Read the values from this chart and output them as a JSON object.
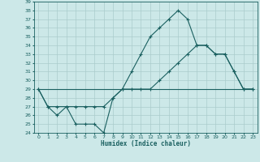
{
  "xlabel": "Humidex (Indice chaleur)",
  "bg_color": "#cce8e8",
  "grid_color": "#aacccc",
  "line_color": "#1a6060",
  "xlim": [
    -0.5,
    23.5
  ],
  "ylim": [
    24,
    39
  ],
  "yticks": [
    24,
    25,
    26,
    27,
    28,
    29,
    30,
    31,
    32,
    33,
    34,
    35,
    36,
    37,
    38,
    39
  ],
  "xticks": [
    0,
    1,
    2,
    3,
    4,
    5,
    6,
    7,
    8,
    9,
    10,
    11,
    12,
    13,
    14,
    15,
    16,
    17,
    18,
    19,
    20,
    21,
    22,
    23
  ],
  "line1_x": [
    0,
    1,
    2,
    3,
    4,
    5,
    6,
    7,
    8,
    9,
    10,
    11,
    12,
    13,
    14,
    15,
    16,
    17,
    18,
    19,
    20,
    21,
    22,
    23
  ],
  "line1_y": [
    29,
    27,
    26,
    27,
    25,
    25,
    25,
    24,
    28,
    29,
    31,
    33,
    35,
    36,
    37,
    38,
    37,
    34,
    34,
    33,
    33,
    31,
    29,
    29
  ],
  "line2_x": [
    0,
    1,
    2,
    3,
    4,
    5,
    6,
    7,
    8,
    9,
    10,
    11,
    12,
    13,
    14,
    15,
    16,
    17,
    18,
    19,
    20,
    21,
    22,
    23
  ],
  "line2_y": [
    29,
    27,
    27,
    27,
    27,
    27,
    27,
    27,
    28,
    29,
    29,
    29,
    29,
    30,
    31,
    32,
    33,
    34,
    34,
    33,
    33,
    31,
    29,
    29
  ],
  "line3_x": [
    0,
    23
  ],
  "line3_y": [
    29,
    29
  ]
}
